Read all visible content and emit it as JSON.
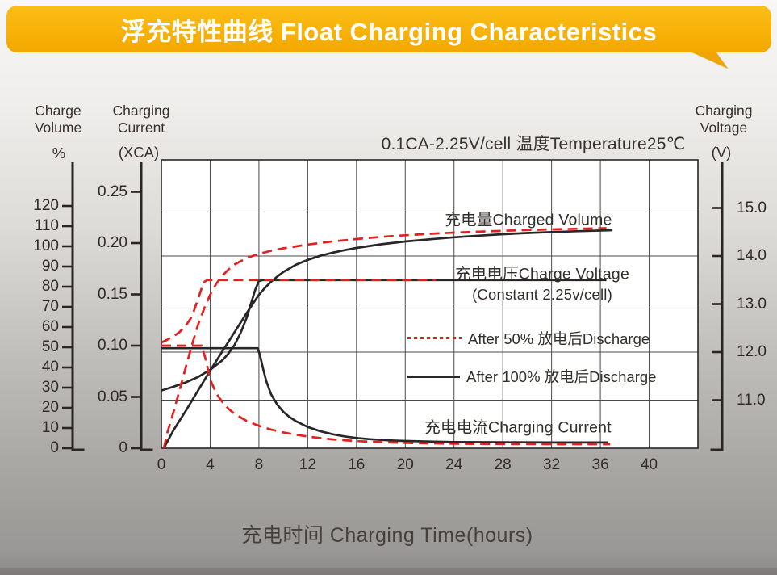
{
  "banner": {
    "title": "浮充特性曲线 Float Charging Characteristics",
    "bg_color": "#F7B107",
    "text_color": "#FFFFFF"
  },
  "condition_note": "0.1CA-2.25V/cell   温度Temperature25℃",
  "x_axis_title": "充电时间 Charging Time(hours)",
  "axis_headers": {
    "volume": {
      "line1": "Charge",
      "line2": "Volume",
      "unit": "%"
    },
    "current": {
      "line1": "Charging",
      "line2": "Current",
      "unit": "(XCA)"
    },
    "voltage": {
      "line1": "Charging",
      "line2": "Voltage",
      "unit": "(V)"
    }
  },
  "plot_labels": {
    "charged_volume": "充电量Charged Volume",
    "charge_voltage_line1": "充电电压Charge Voltage",
    "charge_voltage_line2": "(Constant 2.25v/cell)",
    "charging_current": "充电电流Charging Current"
  },
  "legend": {
    "after50": {
      "label": "After 50% 放电后Discharge",
      "style": "red-dotted"
    },
    "after100": {
      "label": "After 100% 放电后Discharge",
      "style": "black-solid"
    }
  },
  "colors": {
    "red_curve": "#E2201F",
    "black_curve": "#2A2526",
    "grid": "#4D4A49",
    "axis": "#2A2526"
  },
  "chart_data": {
    "type": "line",
    "title": "浮充特性曲线 Float Charging Characteristics",
    "condition": "0.1CA-2.25V/cell, 温度Temperature 25℃",
    "xlabel": "充电时间 Charging Time(hours)",
    "x_axis": {
      "min": 0,
      "max": 44,
      "ticks": [
        0,
        4,
        8,
        12,
        16,
        20,
        24,
        28,
        32,
        36,
        40
      ],
      "grid_step_hours": 4
    },
    "y_axes": {
      "volume": {
        "name": "Charge Volume",
        "unit": "%",
        "min": 0,
        "max": 120,
        "ticks": [
          120,
          110,
          100,
          90,
          80,
          70,
          60,
          50,
          40,
          30,
          20,
          10,
          0
        ],
        "tick_labels": [
          "120",
          "110",
          "100",
          "90",
          "80",
          "70",
          "60",
          "50",
          "40",
          "30",
          "20",
          "10",
          "0"
        ]
      },
      "current": {
        "name": "Charging Current",
        "unit": "XCA",
        "min": 0,
        "max": 0.25,
        "ticks": [
          0.25,
          0.2,
          0.15,
          0.1,
          0.05,
          0
        ],
        "tick_labels": [
          "0.25",
          "0.20",
          "0.15",
          "0.10",
          "0.05",
          "0"
        ]
      },
      "voltage": {
        "name": "Charging Voltage",
        "unit": "V",
        "min": 11,
        "max": 15,
        "ticks": [
          15.0,
          14.0,
          13.0,
          12.0,
          11.0
        ],
        "tick_labels": [
          "15.0",
          "14.0",
          "13.0",
          "12.0",
          "11.0"
        ]
      }
    },
    "grid": true,
    "legend_position": "inside-right",
    "series": [
      {
        "name": "charged-volume-after-100pct-discharge",
        "axis": "volume",
        "color": "black_curve",
        "dashed": false,
        "points": [
          [
            0.2,
            0
          ],
          [
            1,
            9
          ],
          [
            2,
            18.5
          ],
          [
            3,
            28.5
          ],
          [
            4,
            38.5
          ],
          [
            5,
            48
          ],
          [
            6,
            57.5
          ],
          [
            7,
            67
          ],
          [
            8,
            76
          ],
          [
            8.5,
            79.5
          ],
          [
            9,
            82.5
          ],
          [
            9.5,
            85
          ],
          [
            10,
            87.3
          ],
          [
            11,
            90.8
          ],
          [
            12,
            93.3
          ],
          [
            13,
            95.3
          ],
          [
            14,
            96.8
          ],
          [
            15,
            98.1
          ],
          [
            16,
            99.2
          ],
          [
            18,
            101
          ],
          [
            20,
            102.4
          ],
          [
            22,
            103.5
          ],
          [
            24,
            104.5
          ],
          [
            26,
            105.3
          ],
          [
            28,
            106
          ],
          [
            30,
            106.6
          ],
          [
            32,
            107.1
          ],
          [
            34,
            107.5
          ],
          [
            37,
            108
          ]
        ]
      },
      {
        "name": "charge-voltage-after-100pct-discharge",
        "axis": "voltage",
        "color": "black_curve",
        "dashed": false,
        "points": [
          [
            0,
            11.2
          ],
          [
            1,
            11.28
          ],
          [
            2,
            11.37
          ],
          [
            3,
            11.48
          ],
          [
            4,
            11.63
          ],
          [
            5,
            11.83
          ],
          [
            5.5,
            11.97
          ],
          [
            6,
            12.15
          ],
          [
            6.5,
            12.4
          ],
          [
            7,
            12.72
          ],
          [
            7.4,
            13.05
          ],
          [
            7.7,
            13.3
          ],
          [
            8,
            13.48
          ],
          [
            8.3,
            13.5
          ],
          [
            36.5,
            13.5
          ]
        ]
      },
      {
        "name": "charging-current-after-100pct-discharge",
        "axis": "current",
        "color": "black_curve",
        "dashed": false,
        "points": [
          [
            0,
            0.0975
          ],
          [
            7.9,
            0.0975
          ],
          [
            8.1,
            0.09
          ],
          [
            8.35,
            0.077
          ],
          [
            8.6,
            0.0655
          ],
          [
            9,
            0.0525
          ],
          [
            9.5,
            0.0425
          ],
          [
            10,
            0.0355
          ],
          [
            10.5,
            0.0305
          ],
          [
            11,
            0.0265
          ],
          [
            12,
            0.0207
          ],
          [
            13,
            0.0167
          ],
          [
            14,
            0.0137
          ],
          [
            15,
            0.0116
          ],
          [
            16,
            0.01
          ],
          [
            17,
            0.0089
          ],
          [
            18,
            0.0081
          ],
          [
            19,
            0.0075
          ],
          [
            20,
            0.0071
          ],
          [
            22,
            0.0065
          ],
          [
            24,
            0.0061
          ],
          [
            28,
            0.0058
          ],
          [
            32,
            0.0056
          ],
          [
            36.6,
            0.0056
          ]
        ]
      },
      {
        "name": "charged-volume-after-50pct-discharge",
        "axis": "volume",
        "color": "red_curve",
        "dashed": true,
        "points": [
          [
            0.2,
            0
          ],
          [
            0.5,
            8
          ],
          [
            1,
            18
          ],
          [
            1.5,
            29
          ],
          [
            2,
            40
          ],
          [
            2.5,
            51
          ],
          [
            3,
            61
          ],
          [
            3.5,
            69
          ],
          [
            4,
            76
          ],
          [
            4.5,
            81.5
          ],
          [
            5,
            85.5
          ],
          [
            5.5,
            88.5
          ],
          [
            6,
            91
          ],
          [
            7,
            94.2
          ],
          [
            8,
            96.3
          ],
          [
            9,
            97.8
          ],
          [
            10,
            99
          ],
          [
            12,
            100.9
          ],
          [
            14,
            102.4
          ],
          [
            16,
            103.6
          ],
          [
            18,
            104.7
          ],
          [
            20,
            105.5
          ],
          [
            22,
            106.2
          ],
          [
            24,
            106.8
          ],
          [
            26,
            107.3
          ],
          [
            28,
            107.7
          ],
          [
            30,
            108.1
          ],
          [
            32,
            108.4
          ],
          [
            34,
            108.7
          ],
          [
            36.5,
            109
          ]
        ]
      },
      {
        "name": "charge-voltage-after-50pct-discharge",
        "axis": "voltage",
        "color": "red_curve",
        "dashed": true,
        "points": [
          [
            0,
            12.2
          ],
          [
            0.5,
            12.26
          ],
          [
            1,
            12.33
          ],
          [
            1.5,
            12.42
          ],
          [
            2,
            12.55
          ],
          [
            2.4,
            12.7
          ],
          [
            2.7,
            12.88
          ],
          [
            3,
            13.1
          ],
          [
            3.3,
            13.33
          ],
          [
            3.55,
            13.47
          ],
          [
            3.8,
            13.5
          ],
          [
            22.5,
            13.5
          ]
        ]
      },
      {
        "name": "charging-current-after-50pct-discharge",
        "axis": "current",
        "color": "red_curve",
        "dashed": true,
        "points": [
          [
            0,
            0.1
          ],
          [
            3.3,
            0.1
          ],
          [
            3.6,
            0.088
          ],
          [
            4,
            0.067
          ],
          [
            4.5,
            0.0535
          ],
          [
            5,
            0.045
          ],
          [
            5.5,
            0.0385
          ],
          [
            6,
            0.0335
          ],
          [
            7,
            0.0265
          ],
          [
            8,
            0.0218
          ],
          [
            9,
            0.0182
          ],
          [
            10,
            0.0154
          ],
          [
            11,
            0.0132
          ],
          [
            12,
            0.0114
          ],
          [
            13,
            0.0099
          ],
          [
            14,
            0.0087
          ],
          [
            15,
            0.0078
          ],
          [
            16,
            0.007
          ],
          [
            18,
            0.0059
          ],
          [
            20,
            0.0052
          ],
          [
            22,
            0.0047
          ],
          [
            24,
            0.0044
          ],
          [
            26,
            0.0042
          ],
          [
            28,
            0.0041
          ],
          [
            32,
            0.0039
          ],
          [
            36.8,
            0.0039
          ]
        ]
      }
    ]
  }
}
